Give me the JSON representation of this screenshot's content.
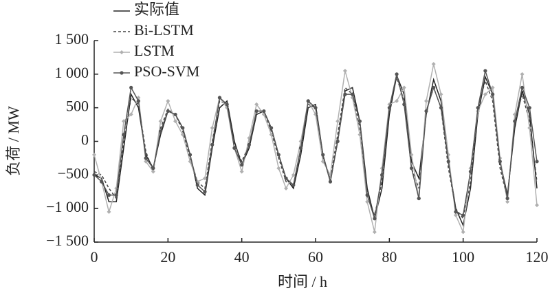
{
  "chart_data": {
    "type": "line",
    "x_label": "时间 / h",
    "y_label": "负荷 / MW",
    "xlim": [
      0,
      120
    ],
    "xticks": [
      0,
      20,
      40,
      60,
      80,
      100,
      120
    ],
    "ylim": [
      -1500,
      1500
    ],
    "yticks": [
      {
        "value": -1500,
        "label": "−1 500"
      },
      {
        "value": -1000,
        "label": "−1 000"
      },
      {
        "value": -500,
        "label": "−500"
      },
      0,
      500,
      {
        "value": 1000,
        "label": "1 000"
      },
      {
        "value": 1500,
        "label": "1 500"
      }
    ],
    "legend_position": "upper left",
    "x": [
      0,
      2,
      4,
      6,
      8,
      10,
      12,
      14,
      16,
      18,
      20,
      22,
      24,
      26,
      28,
      30,
      32,
      34,
      36,
      38,
      40,
      42,
      44,
      46,
      48,
      50,
      52,
      54,
      56,
      58,
      60,
      62,
      64,
      66,
      68,
      70,
      72,
      74,
      76,
      78,
      80,
      82,
      84,
      86,
      88,
      90,
      92,
      94,
      96,
      98,
      100,
      102,
      104,
      106,
      108,
      110,
      112,
      114,
      116,
      118,
      120
    ],
    "series": [
      {
        "name": "实际值",
        "color": "#222222",
        "style": "solid",
        "marker": "none",
        "values": [
          -500,
          -550,
          -900,
          -900,
          -100,
          700,
          500,
          -200,
          -400,
          100,
          450,
          400,
          200,
          -200,
          -700,
          -800,
          -100,
          500,
          600,
          0,
          -350,
          -100,
          400,
          450,
          200,
          -200,
          -550,
          -700,
          -200,
          500,
          550,
          -200,
          -600,
          0,
          750,
          800,
          300,
          -700,
          -1150,
          -700,
          400,
          980,
          700,
          -300,
          -550,
          400,
          920,
          600,
          -300,
          -1000,
          -1250,
          -700,
          400,
          960,
          700,
          -300,
          -800,
          200,
          750,
          400,
          -700
        ]
      },
      {
        "name": "Bi-LSTM",
        "color": "#444444",
        "style": "dashed",
        "marker": "none",
        "values": [
          -450,
          -500,
          -700,
          -850,
          0,
          650,
          550,
          -150,
          -450,
          200,
          480,
          400,
          150,
          -250,
          -600,
          -700,
          0,
          600,
          550,
          -50,
          -300,
          -50,
          450,
          450,
          150,
          -250,
          -600,
          -650,
          -100,
          550,
          500,
          -250,
          -550,
          100,
          800,
          700,
          200,
          -800,
          -1100,
          -600,
          500,
          950,
          600,
          -400,
          -700,
          450,
          800,
          500,
          -400,
          -1000,
          -1150,
          -600,
          500,
          900,
          600,
          -400,
          -850,
          300,
          700,
          300,
          -600
        ]
      },
      {
        "name": "LSTM",
        "color": "#b0b0b0",
        "style": "solid",
        "marker": "diamond",
        "values": [
          -200,
          -600,
          -1050,
          -700,
          300,
          400,
          650,
          -300,
          -450,
          300,
          600,
          300,
          100,
          -300,
          -600,
          -550,
          200,
          650,
          500,
          -100,
          -450,
          50,
          550,
          400,
          100,
          -400,
          -700,
          -500,
          0,
          600,
          400,
          -300,
          -500,
          300,
          1050,
          650,
          100,
          -900,
          -1350,
          -400,
          550,
          600,
          800,
          -200,
          -850,
          600,
          1150,
          700,
          -200,
          -1100,
          -1350,
          -400,
          450,
          700,
          800,
          -250,
          -900,
          400,
          1000,
          200,
          -950
        ]
      },
      {
        "name": "PSO-SVM",
        "color": "#555555",
        "style": "solid",
        "marker": "circle",
        "values": [
          -500,
          -600,
          -800,
          -800,
          100,
          800,
          600,
          -250,
          -400,
          150,
          450,
          400,
          200,
          -200,
          -650,
          -750,
          -50,
          650,
          550,
          -100,
          -350,
          -50,
          450,
          450,
          200,
          -200,
          -550,
          -650,
          -100,
          600,
          500,
          -200,
          -600,
          0,
          700,
          700,
          300,
          -800,
          -1150,
          -500,
          500,
          1000,
          550,
          -400,
          -850,
          450,
          800,
          500,
          -300,
          -1050,
          -1100,
          -450,
          500,
          1050,
          700,
          -300,
          -850,
          300,
          800,
          500,
          -300
        ]
      }
    ]
  }
}
